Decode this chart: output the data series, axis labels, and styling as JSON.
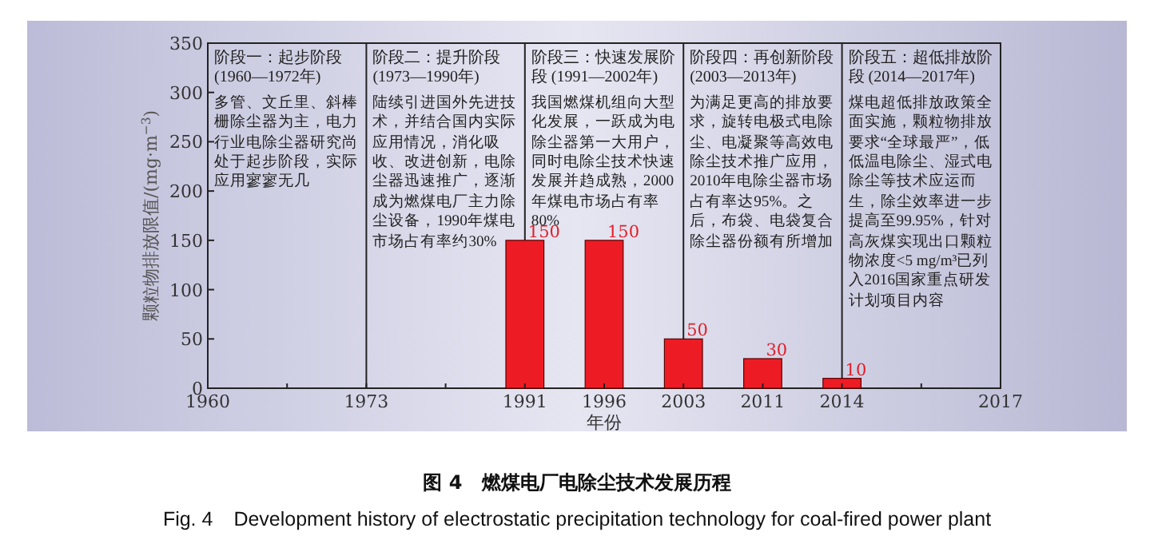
{
  "chart_data": {
    "type": "bar",
    "title": "图 4　燃煤电厂电除尘技术发展历程",
    "subtitle": "Fig. 4　Development history of electrostatic precipitation technology for coal-fired power plant",
    "xlabel": "年份",
    "ylabel": "颗粒物排放限值/(mg·m$^{−3}$)",
    "categories": [
      "1960",
      null,
      "1973",
      null,
      "1991",
      "1996",
      "2003",
      "2011",
      "2014",
      null,
      "2017"
    ],
    "values": [
      null,
      null,
      null,
      null,
      150,
      150,
      50,
      30,
      10,
      null,
      null
    ],
    "color": "#ed1c24",
    "data_labels": true,
    "ylim": [
      0,
      350
    ],
    "yticks": [
      0,
      50,
      100,
      150,
      200,
      250,
      300,
      350
    ],
    "grid": false,
    "ref_lines": [
      {
        "axis": "x",
        "value": "1973"
      },
      {
        "axis": "x",
        "value": "1991"
      },
      {
        "axis": "x",
        "value": "2003"
      },
      {
        "axis": "x",
        "value": "2014"
      }
    ],
    "annotations": [
      "阶段一：起步阶段 (1960—1972年)\n多管、文丘里、斜棒栅除尘器为主，电力行业电除尘器研究尚处于起步阶段，实际应用寥寥无几",
      "阶段二：提升阶段 (1973—1990年)\n陆续引进国外先进技术，并结合国内实际应用情况，消化吸收、改进创新，电除尘器迅速推广，逐渐成为燃煤电厂主力除尘设备，1990年煤电市场占有率约30%",
      "阶段三：快速发展阶段 (1991—2002年)\n我国燃煤机组向大型化发展，一跃成为电除尘器第一大用户，同时电除尘技术快速发展并趋成熟，2000年煤电市场占有率80%",
      "阶段四：再创新阶段 (2003—2013年)\n为满足更高的排放要求，旋转电极式电除尘、电凝聚等高效电除尘技术推广应用，2010年电除尘器市场占有率达95%。之后，布袋、电袋复合除尘器份额有所增加",
      "阶段五：超低排放阶段 (2014—2017年)\n煤电超低排放政策全面实施，颗粒物排放要求“全球最严”，低低温电除尘、湿式电除尘等技术应运而生，除尘效率进一步提高至99.95%，针对高灰煤实现出口颗粒物浓度<5 mg/m³已列入2016国家重点研发计划项目内容"
    ]
  }
}
